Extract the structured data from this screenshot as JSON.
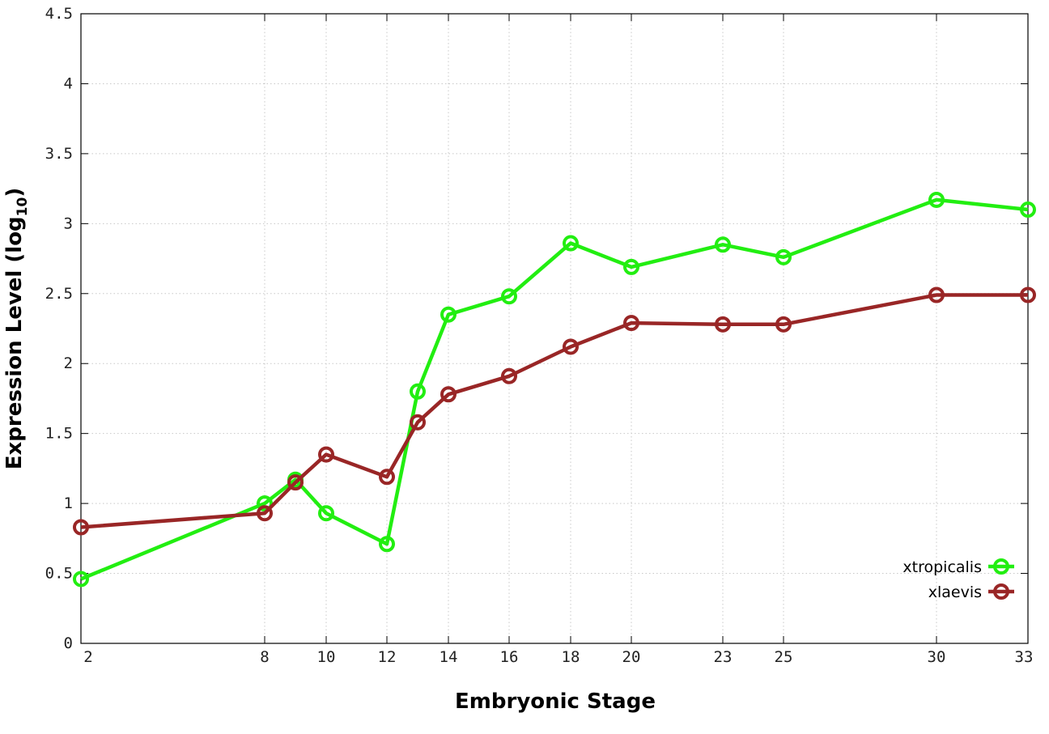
{
  "chart_data": {
    "type": "line",
    "title": "",
    "xlabel": "Embryonic Stage",
    "ylabel": {
      "main": "Expression Level (log",
      "subscript": "10",
      "suffix": ")"
    },
    "x_ticks": [
      "2",
      "8",
      "10",
      "12",
      "14",
      "16",
      "18",
      "20",
      "23",
      "25",
      "30",
      "33"
    ],
    "x_tick_values": [
      2,
      8,
      10,
      12,
      14,
      16,
      18,
      20,
      23,
      25,
      30,
      33
    ],
    "y_ticks": [
      "0",
      "0.5",
      "1",
      "1.5",
      "2",
      "2.5",
      "3",
      "3.5",
      "4",
      "4.5"
    ],
    "y_tick_values": [
      0,
      0.5,
      1,
      1.5,
      2,
      2.5,
      3,
      3.5,
      4,
      4.5
    ],
    "xlim": [
      2,
      33
    ],
    "ylim": [
      0,
      4.5
    ],
    "grid": true,
    "legend_position": "bottom-right",
    "series": [
      {
        "name": "xtropicalis",
        "color": "#22ee11",
        "x": [
          2,
          8,
          9,
          10,
          12,
          13,
          14,
          16,
          18,
          20,
          23,
          25,
          30,
          33
        ],
        "values": [
          0.46,
          1.0,
          1.17,
          0.93,
          0.71,
          1.8,
          2.35,
          2.48,
          2.86,
          2.69,
          2.85,
          2.76,
          3.17,
          3.1
        ]
      },
      {
        "name": "xlaevis",
        "color": "#992626",
        "x": [
          2,
          8,
          9,
          10,
          12,
          13,
          14,
          16,
          18,
          20,
          23,
          25,
          30,
          33
        ],
        "values": [
          0.83,
          0.93,
          1.15,
          1.35,
          1.19,
          1.58,
          1.78,
          1.91,
          2.12,
          2.29,
          2.28,
          2.28,
          2.49,
          2.49
        ]
      }
    ]
  }
}
